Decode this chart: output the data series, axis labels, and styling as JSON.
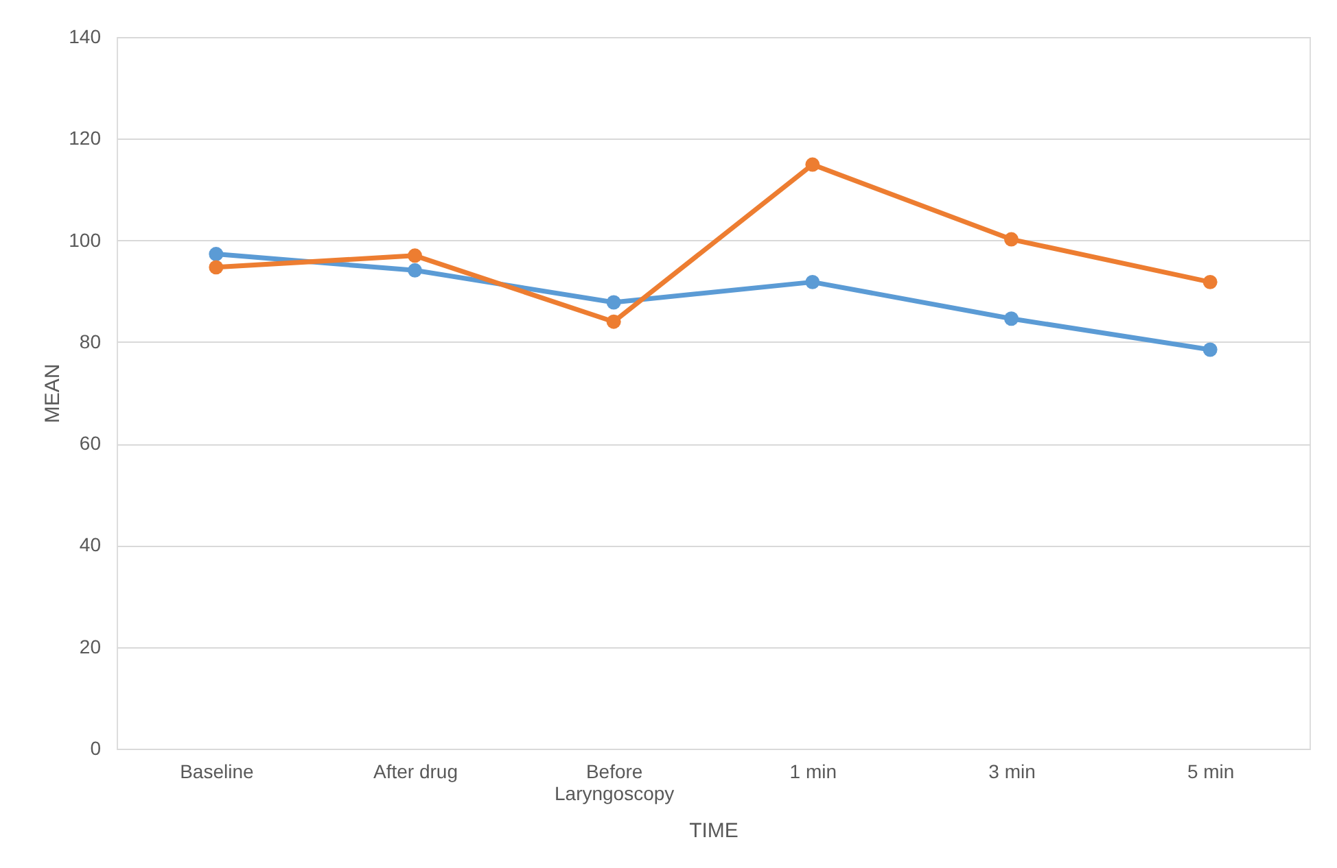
{
  "chart_data": {
    "type": "line",
    "xlabel": "TIME",
    "ylabel": "MEAN",
    "categories": [
      "Baseline",
      "After drug",
      "Before Laryngoscopy",
      "1 min",
      "3 min",
      "5 min"
    ],
    "series": [
      {
        "color": "#5b9bd5",
        "values": [
          97.3,
          94.1,
          87.8,
          91.8,
          84.6,
          78.5
        ]
      },
      {
        "color": "#ed7d31",
        "values": [
          94.7,
          97.0,
          84.0,
          114.9,
          100.2,
          91.8
        ]
      }
    ],
    "ylim": [
      0,
      140
    ],
    "yticks": [
      0,
      20,
      40,
      60,
      80,
      100,
      120,
      140
    ],
    "grid": "y",
    "marker": "circle",
    "line_style": "solid",
    "legend": false
  }
}
